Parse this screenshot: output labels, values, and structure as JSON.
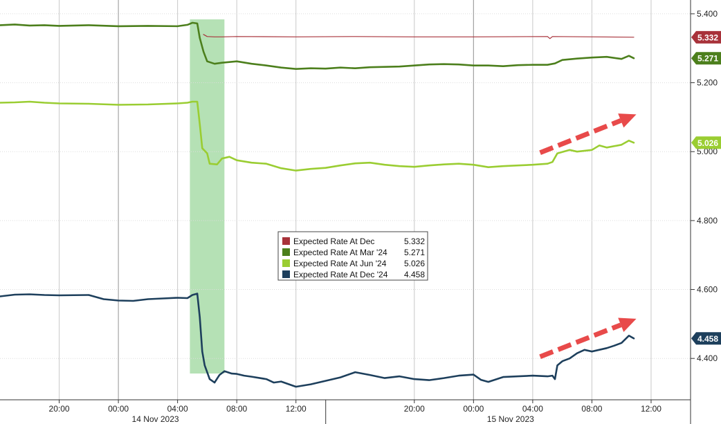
{
  "chart_data": {
    "type": "line",
    "ylim": [
      4.28,
      5.44
    ],
    "x_range": [
      "2023-11-13 16:00",
      "2023-11-15 14:40"
    ],
    "y_ticks": [
      {
        "value": 5.4,
        "label": "5.400"
      },
      {
        "value": 5.2,
        "label": "5.200"
      },
      {
        "value": 5.0,
        "label": "5.000"
      },
      {
        "value": 4.8,
        "label": "4.800"
      },
      {
        "value": 4.6,
        "label": "4.600"
      },
      {
        "value": 4.4,
        "label": "4.400"
      }
    ],
    "x_ticks": [
      {
        "x": "2023-11-13 20:00",
        "label": "20:00"
      },
      {
        "x": "2023-11-14 00:00",
        "label": "00:00"
      },
      {
        "x": "2023-11-14 04:00",
        "label": "04:00"
      },
      {
        "x": "2023-11-14 08:00",
        "label": "08:00"
      },
      {
        "x": "2023-11-14 12:00",
        "label": "12:00"
      },
      {
        "x": "2023-11-14 20:00",
        "label": "20:00"
      },
      {
        "x": "2023-11-15 00:00",
        "label": "00:00"
      },
      {
        "x": "2023-11-15 04:00",
        "label": "04:00"
      },
      {
        "x": "2023-11-15 08:00",
        "label": "08:00"
      },
      {
        "x": "2023-11-15 12:00",
        "label": "12:00"
      }
    ],
    "date_labels": [
      {
        "x": "2023-11-14 02:30",
        "label": "14 Nov 2023"
      },
      {
        "x": "2023-11-15 02:30",
        "label": "15 Nov 2023"
      }
    ],
    "highlight_band": {
      "from": "2023-11-14 04:50",
      "to": "2023-11-14 07:10",
      "color": "#a8dca8"
    },
    "grid": true,
    "legend_position": "center",
    "series": [
      {
        "name": "Expected Rate At Dec",
        "last": "5.332",
        "color": "#a8323a",
        "width": 1.2,
        "points": [
          [
            "2023-11-14 05:45",
            5.34
          ],
          [
            "2023-11-14 06:00",
            5.334
          ],
          [
            "2023-11-14 06:30",
            5.333
          ],
          [
            "2023-11-14 07:00",
            5.333
          ],
          [
            "2023-11-14 08:00",
            5.334
          ],
          [
            "2023-11-14 12:00",
            5.333
          ],
          [
            "2023-11-14 16:00",
            5.334
          ],
          [
            "2023-11-14 20:00",
            5.333
          ],
          [
            "2023-11-15 00:00",
            5.333
          ],
          [
            "2023-11-15 05:00",
            5.334
          ],
          [
            "2023-11-15 05:10",
            5.328
          ],
          [
            "2023-11-15 05:20",
            5.334
          ],
          [
            "2023-11-15 10:50",
            5.332
          ]
        ]
      },
      {
        "name": "Expected Rate At Mar '24",
        "last": "5.271",
        "color": "#4c7f1c",
        "width": 2.6,
        "points": [
          [
            "2023-11-13 16:00",
            5.367
          ],
          [
            "2023-11-13 17:00",
            5.369
          ],
          [
            "2023-11-13 18:00",
            5.366
          ],
          [
            "2023-11-13 19:00",
            5.367
          ],
          [
            "2023-11-13 20:00",
            5.365
          ],
          [
            "2023-11-13 22:00",
            5.367
          ],
          [
            "2023-11-14 00:00",
            5.364
          ],
          [
            "2023-11-14 02:00",
            5.365
          ],
          [
            "2023-11-14 04:00",
            5.364
          ],
          [
            "2023-11-14 04:40",
            5.368
          ],
          [
            "2023-11-14 05:00",
            5.374
          ],
          [
            "2023-11-14 05:20",
            5.372
          ],
          [
            "2023-11-14 05:30",
            5.33
          ],
          [
            "2023-11-14 05:45",
            5.29
          ],
          [
            "2023-11-14 06:00",
            5.262
          ],
          [
            "2023-11-14 06:30",
            5.255
          ],
          [
            "2023-11-14 07:00",
            5.258
          ],
          [
            "2023-11-14 08:00",
            5.262
          ],
          [
            "2023-11-14 09:00",
            5.255
          ],
          [
            "2023-11-14 10:00",
            5.25
          ],
          [
            "2023-11-14 11:00",
            5.244
          ],
          [
            "2023-11-14 12:00",
            5.24
          ],
          [
            "2023-11-14 13:00",
            5.242
          ],
          [
            "2023-11-14 14:00",
            5.241
          ],
          [
            "2023-11-14 15:00",
            5.244
          ],
          [
            "2023-11-14 16:00",
            5.242
          ],
          [
            "2023-11-14 17:00",
            5.245
          ],
          [
            "2023-11-14 18:00",
            5.246
          ],
          [
            "2023-11-14 19:00",
            5.247
          ],
          [
            "2023-11-14 20:00",
            5.25
          ],
          [
            "2023-11-14 21:00",
            5.253
          ],
          [
            "2023-11-14 22:00",
            5.254
          ],
          [
            "2023-11-14 23:00",
            5.253
          ],
          [
            "2023-11-15 00:00",
            5.25
          ],
          [
            "2023-11-15 01:00",
            5.25
          ],
          [
            "2023-11-15 02:00",
            5.248
          ],
          [
            "2023-11-15 03:00",
            5.251
          ],
          [
            "2023-11-15 04:00",
            5.252
          ],
          [
            "2023-11-15 05:00",
            5.252
          ],
          [
            "2023-11-15 05:30",
            5.256
          ],
          [
            "2023-11-15 06:00",
            5.266
          ],
          [
            "2023-11-15 07:00",
            5.27
          ],
          [
            "2023-11-15 08:00",
            5.273
          ],
          [
            "2023-11-15 09:00",
            5.275
          ],
          [
            "2023-11-15 10:00",
            5.269
          ],
          [
            "2023-11-15 10:30",
            5.278
          ],
          [
            "2023-11-15 10:50",
            5.271
          ]
        ]
      },
      {
        "name": "Expected Rate At Jun '24",
        "last": "5.026",
        "color": "#9acd32",
        "width": 2.6,
        "points": [
          [
            "2023-11-13 16:00",
            5.142
          ],
          [
            "2023-11-13 17:00",
            5.143
          ],
          [
            "2023-11-13 18:00",
            5.145
          ],
          [
            "2023-11-13 19:00",
            5.142
          ],
          [
            "2023-11-13 20:00",
            5.14
          ],
          [
            "2023-11-13 22:00",
            5.139
          ],
          [
            "2023-11-14 00:00",
            5.136
          ],
          [
            "2023-11-14 02:00",
            5.137
          ],
          [
            "2023-11-14 04:00",
            5.14
          ],
          [
            "2023-11-14 04:40",
            5.142
          ],
          [
            "2023-11-14 05:00",
            5.145
          ],
          [
            "2023-11-14 05:20",
            5.145
          ],
          [
            "2023-11-14 05:30",
            5.08
          ],
          [
            "2023-11-14 05:40",
            5.01
          ],
          [
            "2023-11-14 06:00",
            4.995
          ],
          [
            "2023-11-14 06:10",
            4.965
          ],
          [
            "2023-11-14 06:40",
            4.963
          ],
          [
            "2023-11-14 07:00",
            4.98
          ],
          [
            "2023-11-14 07:30",
            4.985
          ],
          [
            "2023-11-14 08:00",
            4.975
          ],
          [
            "2023-11-14 09:00",
            4.968
          ],
          [
            "2023-11-14 10:00",
            4.965
          ],
          [
            "2023-11-14 11:00",
            4.952
          ],
          [
            "2023-11-14 12:00",
            4.945
          ],
          [
            "2023-11-14 13:00",
            4.95
          ],
          [
            "2023-11-14 14:00",
            4.953
          ],
          [
            "2023-11-14 15:00",
            4.96
          ],
          [
            "2023-11-14 16:00",
            4.966
          ],
          [
            "2023-11-14 17:00",
            4.968
          ],
          [
            "2023-11-14 18:00",
            4.962
          ],
          [
            "2023-11-14 19:00",
            4.958
          ],
          [
            "2023-11-14 20:00",
            4.956
          ],
          [
            "2023-11-14 21:00",
            4.96
          ],
          [
            "2023-11-14 22:00",
            4.963
          ],
          [
            "2023-11-14 23:00",
            4.965
          ],
          [
            "2023-11-15 00:00",
            4.962
          ],
          [
            "2023-11-15 01:00",
            4.955
          ],
          [
            "2023-11-15 02:00",
            4.958
          ],
          [
            "2023-11-15 03:00",
            4.96
          ],
          [
            "2023-11-15 04:00",
            4.962
          ],
          [
            "2023-11-15 05:00",
            4.965
          ],
          [
            "2023-11-15 05:20",
            4.97
          ],
          [
            "2023-11-15 05:40",
            4.995
          ],
          [
            "2023-11-15 06:30",
            5.005
          ],
          [
            "2023-11-15 07:00",
            5.0
          ],
          [
            "2023-11-15 08:00",
            5.005
          ],
          [
            "2023-11-15 08:30",
            5.018
          ],
          [
            "2023-11-15 09:00",
            5.012
          ],
          [
            "2023-11-15 10:00",
            5.02
          ],
          [
            "2023-11-15 10:30",
            5.032
          ],
          [
            "2023-11-15 10:50",
            5.026
          ]
        ]
      },
      {
        "name": "Expected Rate At Dec '24",
        "last": "4.458",
        "color": "#1d3f5c",
        "width": 2.6,
        "points": [
          [
            "2023-11-13 16:00",
            4.58
          ],
          [
            "2023-11-13 17:00",
            4.585
          ],
          [
            "2023-11-13 18:00",
            4.586
          ],
          [
            "2023-11-13 19:00",
            4.584
          ],
          [
            "2023-11-13 20:00",
            4.583
          ],
          [
            "2023-11-13 22:00",
            4.584
          ],
          [
            "2023-11-13 23:00",
            4.572
          ],
          [
            "2023-11-14 00:00",
            4.568
          ],
          [
            "2023-11-14 01:00",
            4.567
          ],
          [
            "2023-11-14 02:00",
            4.572
          ],
          [
            "2023-11-14 03:00",
            4.574
          ],
          [
            "2023-11-14 04:00",
            4.576
          ],
          [
            "2023-11-14 04:40",
            4.575
          ],
          [
            "2023-11-14 05:00",
            4.584
          ],
          [
            "2023-11-14 05:20",
            4.588
          ],
          [
            "2023-11-14 05:30",
            4.52
          ],
          [
            "2023-11-14 05:40",
            4.42
          ],
          [
            "2023-11-14 05:50",
            4.38
          ],
          [
            "2023-11-14 06:00",
            4.36
          ],
          [
            "2023-11-14 06:10",
            4.34
          ],
          [
            "2023-11-14 06:30",
            4.33
          ],
          [
            "2023-11-14 06:50",
            4.352
          ],
          [
            "2023-11-14 07:10",
            4.363
          ],
          [
            "2023-11-14 07:40",
            4.356
          ],
          [
            "2023-11-14 08:00",
            4.355
          ],
          [
            "2023-11-14 08:30",
            4.35
          ],
          [
            "2023-11-14 09:00",
            4.347
          ],
          [
            "2023-11-14 10:00",
            4.34
          ],
          [
            "2023-11-14 10:30",
            4.33
          ],
          [
            "2023-11-14 11:00",
            4.333
          ],
          [
            "2023-11-14 12:00",
            4.318
          ],
          [
            "2023-11-14 13:00",
            4.325
          ],
          [
            "2023-11-14 14:00",
            4.335
          ],
          [
            "2023-11-14 15:00",
            4.345
          ],
          [
            "2023-11-14 16:00",
            4.36
          ],
          [
            "2023-11-14 17:00",
            4.352
          ],
          [
            "2023-11-14 18:00",
            4.343
          ],
          [
            "2023-11-14 19:00",
            4.348
          ],
          [
            "2023-11-14 20:00",
            4.34
          ],
          [
            "2023-11-14 21:00",
            4.337
          ],
          [
            "2023-11-14 22:00",
            4.343
          ],
          [
            "2023-11-14 23:00",
            4.35
          ],
          [
            "2023-11-15 00:00",
            4.353
          ],
          [
            "2023-11-15 00:30",
            4.338
          ],
          [
            "2023-11-15 01:00",
            4.332
          ],
          [
            "2023-11-15 02:00",
            4.346
          ],
          [
            "2023-11-15 03:00",
            4.348
          ],
          [
            "2023-11-15 04:00",
            4.35
          ],
          [
            "2023-11-15 05:00",
            4.348
          ],
          [
            "2023-11-15 05:20",
            4.35
          ],
          [
            "2023-11-15 05:30",
            4.34
          ],
          [
            "2023-11-15 05:40",
            4.38
          ],
          [
            "2023-11-15 06:00",
            4.392
          ],
          [
            "2023-11-15 06:30",
            4.4
          ],
          [
            "2023-11-15 07:00",
            4.415
          ],
          [
            "2023-11-15 07:30",
            4.425
          ],
          [
            "2023-11-15 08:00",
            4.42
          ],
          [
            "2023-11-15 09:00",
            4.43
          ],
          [
            "2023-11-15 09:30",
            4.437
          ],
          [
            "2023-11-15 10:00",
            4.445
          ],
          [
            "2023-11-15 10:30",
            4.466
          ],
          [
            "2023-11-15 10:50",
            4.458
          ]
        ]
      }
    ],
    "annotations": [
      {
        "type": "arrow",
        "color": "#e84a4a",
        "from": [
          "2023-11-15 04:30",
          4.997
        ],
        "to": [
          "2023-11-15 11:00",
          5.108
        ]
      },
      {
        "type": "arrow",
        "color": "#e84a4a",
        "from": [
          "2023-11-15 04:30",
          4.405
        ],
        "to": [
          "2023-11-15 11:00",
          4.515
        ]
      }
    ]
  }
}
